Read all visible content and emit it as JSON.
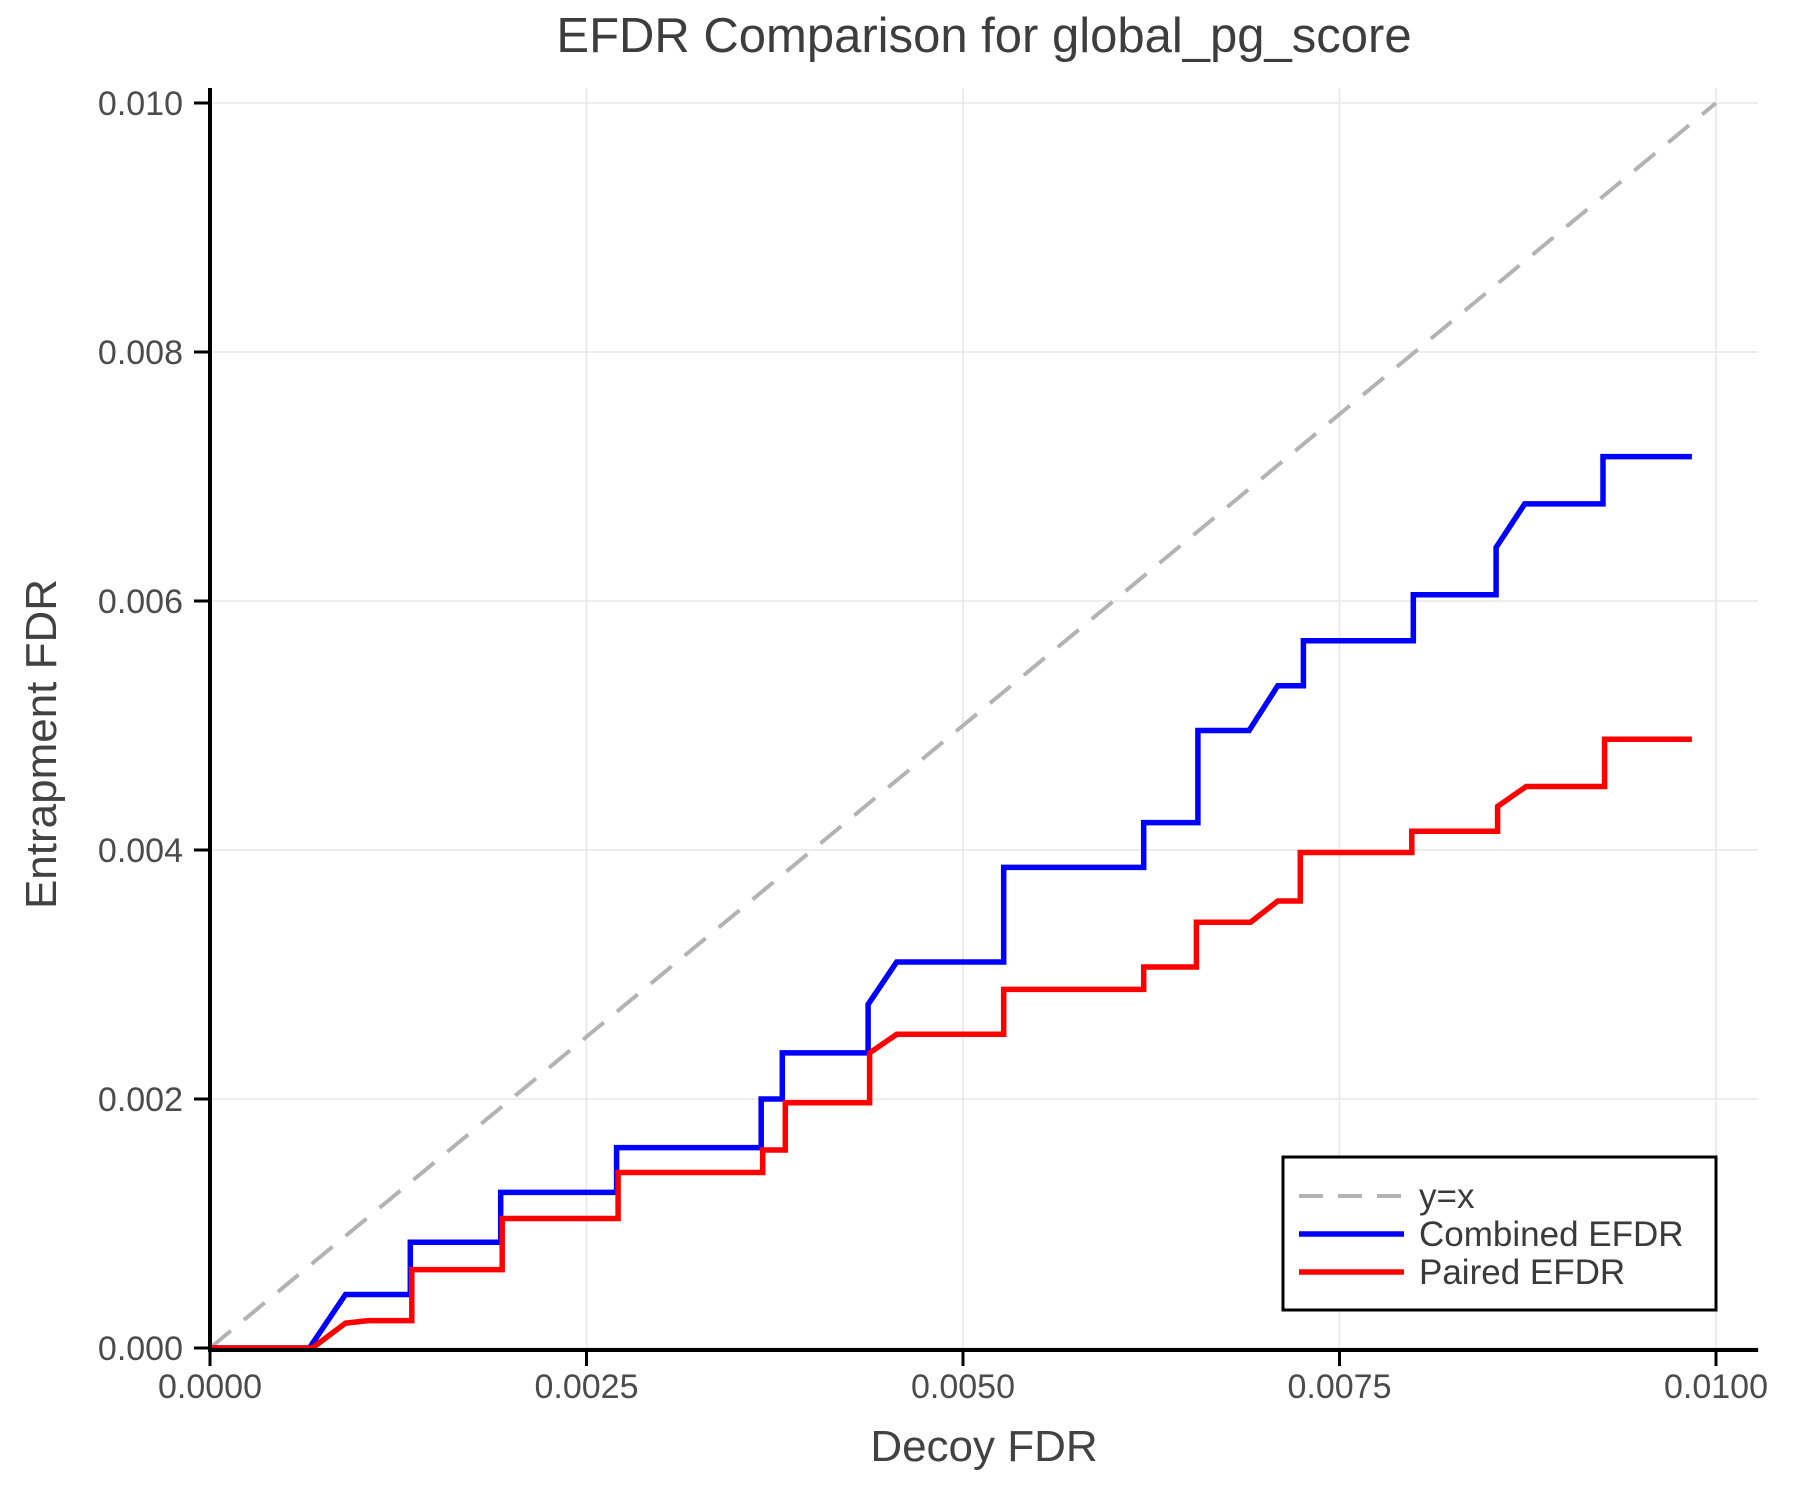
{
  "chart_data": {
    "type": "line",
    "title": "EFDR Comparison for global_pg_score",
    "xlabel": "Decoy FDR",
    "ylabel": "Entrapment FDR",
    "xlim": [
      0,
      0.01028
    ],
    "ylim": [
      0,
      0.01012
    ],
    "grid": true,
    "grid_color": "#e7e7e7",
    "spine_color": "#000000",
    "legend_position": "lower right",
    "xticks": {
      "values": [
        0,
        0.0025,
        0.005,
        0.0075,
        0.01
      ],
      "labels": [
        "0.0000",
        "0.0025",
        "0.0050",
        "0.0075",
        "0.0100"
      ]
    },
    "yticks": {
      "values": [
        0,
        0.002,
        0.004,
        0.006,
        0.008,
        0.01
      ],
      "labels": [
        "0.000",
        "0.002",
        "0.004",
        "0.006",
        "0.008",
        "0.010"
      ]
    },
    "series": [
      {
        "name": "y=x",
        "color": "#b3b3b3",
        "style": "dashed",
        "width": 4,
        "points": [
          [
            0,
            0
          ],
          [
            0.01,
            0.01
          ]
        ]
      },
      {
        "name": "Combined EFDR",
        "color": "#0000ff",
        "style": "solid",
        "width": 5.5,
        "points": [
          [
            0,
            0
          ],
          [
            0.00066,
            0
          ],
          [
            0.0009,
            0.00043
          ],
          [
            0.00133,
            0.00043
          ],
          [
            0.00133,
            0.00085
          ],
          [
            0.00193,
            0.00085
          ],
          [
            0.00193,
            0.00125
          ],
          [
            0.0027,
            0.00125
          ],
          [
            0.0027,
            0.00161
          ],
          [
            0.00366,
            0.00161
          ],
          [
            0.00366,
            0.002
          ],
          [
            0.0038,
            0.002
          ],
          [
            0.0038,
            0.00237
          ],
          [
            0.00437,
            0.00237
          ],
          [
            0.00437,
            0.00276
          ],
          [
            0.00456,
            0.0031
          ],
          [
            0.00527,
            0.0031
          ],
          [
            0.00527,
            0.00386
          ],
          [
            0.0062,
            0.00386
          ],
          [
            0.0062,
            0.00422
          ],
          [
            0.00656,
            0.00422
          ],
          [
            0.00656,
            0.00496
          ],
          [
            0.0069,
            0.00496
          ],
          [
            0.00709,
            0.00532
          ],
          [
            0.00726,
            0.00532
          ],
          [
            0.00726,
            0.00568
          ],
          [
            0.00799,
            0.00568
          ],
          [
            0.00799,
            0.00605
          ],
          [
            0.00854,
            0.00605
          ],
          [
            0.00854,
            0.00643
          ],
          [
            0.00873,
            0.00678
          ],
          [
            0.00925,
            0.00678
          ],
          [
            0.00925,
            0.00716
          ],
          [
            0.00984,
            0.00716
          ]
        ]
      },
      {
        "name": "Paired EFDR",
        "color": "#ff0000",
        "style": "solid",
        "width": 5.5,
        "points": [
          [
            0,
            0
          ],
          [
            0.00068,
            0
          ],
          [
            0.0009,
            0.0002
          ],
          [
            0.00105,
            0.00022
          ],
          [
            0.00134,
            0.00022
          ],
          [
            0.00134,
            0.00063
          ],
          [
            0.00194,
            0.00063
          ],
          [
            0.00194,
            0.00104
          ],
          [
            0.00271,
            0.00104
          ],
          [
            0.00271,
            0.00141
          ],
          [
            0.00367,
            0.00141
          ],
          [
            0.00367,
            0.00159
          ],
          [
            0.00382,
            0.00159
          ],
          [
            0.00382,
            0.00197
          ],
          [
            0.00438,
            0.00197
          ],
          [
            0.00438,
            0.00237
          ],
          [
            0.00456,
            0.00252
          ],
          [
            0.00527,
            0.00252
          ],
          [
            0.00527,
            0.00288
          ],
          [
            0.0062,
            0.00288
          ],
          [
            0.0062,
            0.00306
          ],
          [
            0.00655,
            0.00306
          ],
          [
            0.00655,
            0.00342
          ],
          [
            0.00691,
            0.00342
          ],
          [
            0.00709,
            0.00359
          ],
          [
            0.00724,
            0.00359
          ],
          [
            0.00724,
            0.00398
          ],
          [
            0.00798,
            0.00398
          ],
          [
            0.00798,
            0.00415
          ],
          [
            0.00855,
            0.00415
          ],
          [
            0.00855,
            0.00435
          ],
          [
            0.00874,
            0.00451
          ],
          [
            0.00926,
            0.00451
          ],
          [
            0.00926,
            0.00489
          ],
          [
            0.00984,
            0.00489
          ]
        ]
      }
    ],
    "legend": {
      "entries": [
        "y=x",
        "Combined EFDR",
        "Paired EFDR"
      ],
      "border_color": "#000000",
      "background": "#ffffff"
    }
  }
}
